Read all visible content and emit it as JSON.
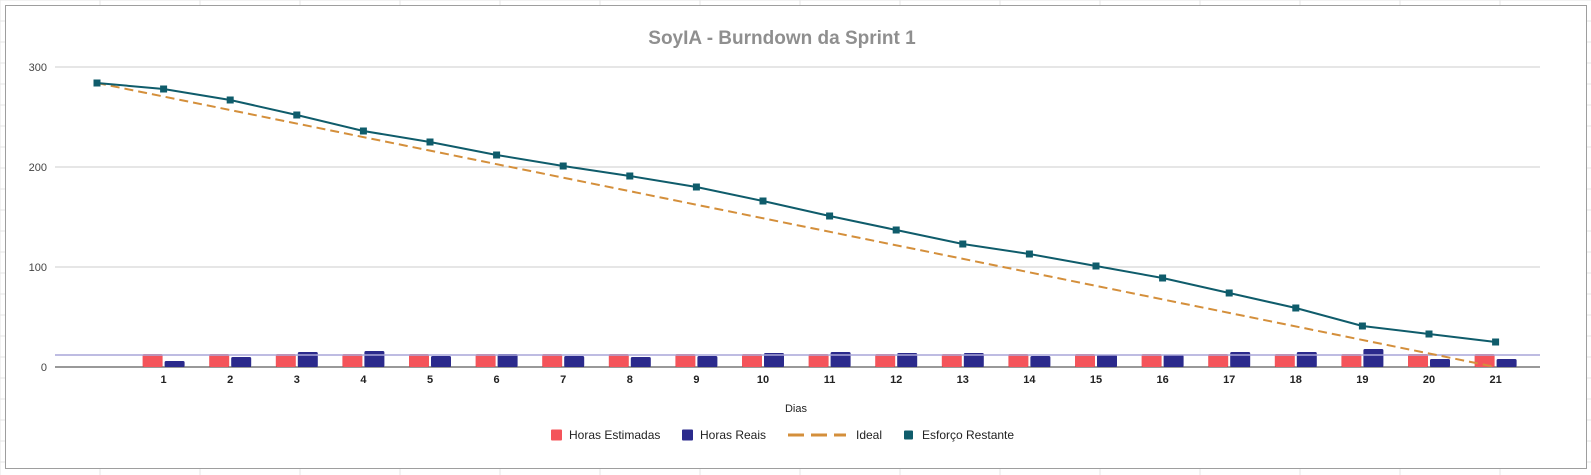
{
  "chart_data": {
    "type": "bar",
    "title": "SoyIA - Burndown da Sprint 1",
    "xlabel": "Dias",
    "ylabel": "",
    "ylim": [
      0,
      300
    ],
    "yticks": [
      "0",
      "100",
      "200",
      "300"
    ],
    "grid": true,
    "legend_position": "bottom",
    "categories": [
      "1",
      "2",
      "3",
      "4",
      "5",
      "6",
      "7",
      "8",
      "9",
      "10",
      "11",
      "12",
      "13",
      "14",
      "15",
      "16",
      "17",
      "18",
      "19",
      "20",
      "21"
    ],
    "series": [
      {
        "name": "Horas Estimadas",
        "kind": "bar",
        "color": "#f4545a",
        "values": [
          13,
          13,
          13,
          13,
          13,
          13,
          13,
          13,
          13,
          13,
          13,
          13,
          13,
          13,
          13,
          13,
          13,
          13,
          13,
          13,
          13
        ]
      },
      {
        "name": "Horas Reais",
        "kind": "bar",
        "color": "#2b2a8c",
        "values": [
          6,
          10,
          15,
          16,
          11,
          13,
          11,
          10,
          11,
          14,
          15,
          14,
          14,
          11,
          12,
          12,
          15,
          15,
          18,
          8,
          8
        ]
      },
      {
        "name": "Ideal",
        "kind": "line",
        "style": "dashed",
        "color": "#d48f3b",
        "x": [
          0,
          21
        ],
        "values": [
          284,
          0
        ]
      },
      {
        "name": "Esforço Restante",
        "kind": "line",
        "style": "solid",
        "color": "#0f5c6b",
        "x": [
          0,
          1,
          2,
          3,
          4,
          5,
          6,
          7,
          8,
          9,
          10,
          11,
          12,
          13,
          14,
          15,
          16,
          17,
          18,
          19,
          20,
          21
        ],
        "values": [
          284,
          278,
          267,
          252,
          236,
          225,
          212,
          201,
          191,
          180,
          166,
          151,
          137,
          123,
          113,
          101,
          89,
          74,
          59,
          41,
          33,
          25
        ]
      }
    ],
    "reference_line": {
      "value": 12,
      "color": "#a9a6d8"
    }
  }
}
